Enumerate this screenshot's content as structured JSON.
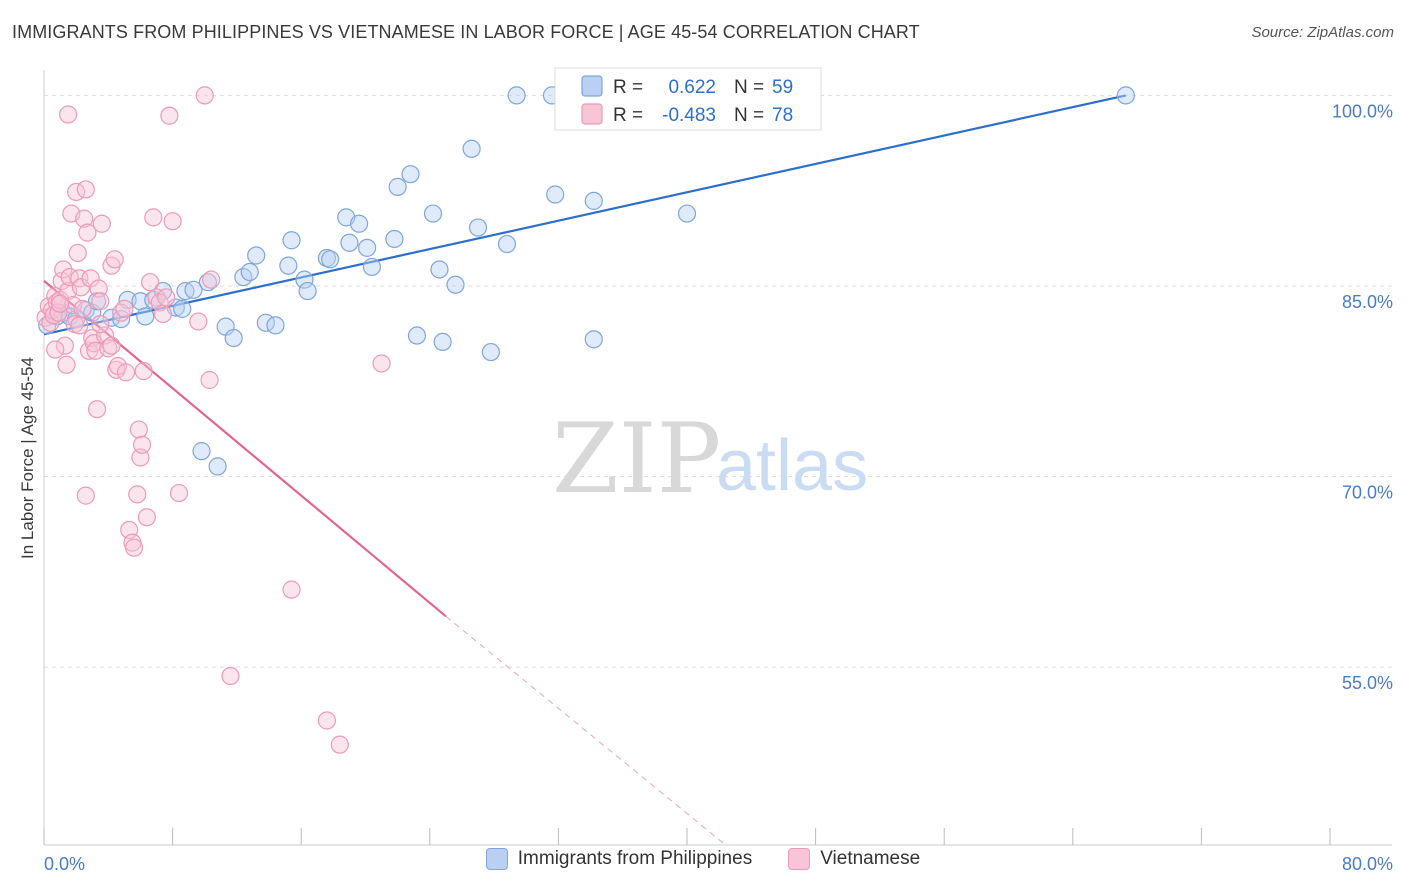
{
  "title": "IMMIGRANTS FROM PHILIPPINES VS VIETNAMESE IN LABOR FORCE | AGE 45-54 CORRELATION CHART",
  "source": "Source: ZipAtlas.com",
  "watermark": {
    "zip": "ZIP",
    "atlas": "atlas"
  },
  "colors": {
    "blue_stroke": "#7ea6dc",
    "blue_fill": "#b9d0f3",
    "blue_line": "#2c6fcd",
    "pink_stroke": "#ec9ab5",
    "pink_fill": "#f7c5d6",
    "pink_line": "#e0668f",
    "axis_label": "#4a7cc6",
    "grid": "#dddddd"
  },
  "chart_data": {
    "type": "scatter",
    "ylabel": "In Labor Force | Age 45-54",
    "x_tick_labels": [
      "0.0%",
      "80.0%"
    ],
    "y_tick_labels": [
      "100.0%",
      "85.0%",
      "70.0%",
      "55.0%"
    ],
    "y_ticks": [
      100,
      85,
      70,
      55
    ],
    "xlim": [
      0,
      80
    ],
    "ylim": [
      41,
      102
    ],
    "legend": {
      "rows": [
        {
          "r_label": "R =",
          "r_value": "0.622",
          "n_label": "N =",
          "n_value": "59"
        },
        {
          "r_label": "R =",
          "r_value": "-0.483",
          "n_label": "N =",
          "n_value": "78"
        }
      ]
    },
    "series": [
      {
        "name": "Immigrants from Philippines",
        "color": "blue",
        "R": 0.622,
        "N": 59,
        "trend": {
          "x0": 0,
          "y0": 81.2,
          "x1": 67.3,
          "y1": 100.0
        },
        "points": [
          [
            0.2,
            81.9
          ],
          [
            0.8,
            82.6
          ],
          [
            1.2,
            82.9
          ],
          [
            1.6,
            82.6
          ],
          [
            2.0,
            82.4
          ],
          [
            2.6,
            83.1
          ],
          [
            3.0,
            82.9
          ],
          [
            3.3,
            83.8
          ],
          [
            4.2,
            82.5
          ],
          [
            4.8,
            82.4
          ],
          [
            5.2,
            83.9
          ],
          [
            6.0,
            83.8
          ],
          [
            6.3,
            82.6
          ],
          [
            6.8,
            83.9
          ],
          [
            7.4,
            84.6
          ],
          [
            8.2,
            83.3
          ],
          [
            8.6,
            83.2
          ],
          [
            8.8,
            84.6
          ],
          [
            9.3,
            84.7
          ],
          [
            10.2,
            85.3
          ],
          [
            11.3,
            81.8
          ],
          [
            11.8,
            80.9
          ],
          [
            12.4,
            85.7
          ],
          [
            12.8,
            86.1
          ],
          [
            13.2,
            87.4
          ],
          [
            13.8,
            82.1
          ],
          [
            14.4,
            81.9
          ],
          [
            15.2,
            86.6
          ],
          [
            15.4,
            88.6
          ],
          [
            16.2,
            85.5
          ],
          [
            16.4,
            84.6
          ],
          [
            17.6,
            87.2
          ],
          [
            17.8,
            87.1
          ],
          [
            18.8,
            90.4
          ],
          [
            19.0,
            88.4
          ],
          [
            19.6,
            89.9
          ],
          [
            20.1,
            88.0
          ],
          [
            20.4,
            86.5
          ],
          [
            21.8,
            88.7
          ],
          [
            22.0,
            92.8
          ],
          [
            22.8,
            93.8
          ],
          [
            23.2,
            81.1
          ],
          [
            24.2,
            90.7
          ],
          [
            24.6,
            86.3
          ],
          [
            24.8,
            80.6
          ],
          [
            25.6,
            85.1
          ],
          [
            26.6,
            95.8
          ],
          [
            27.0,
            89.6
          ],
          [
            27.8,
            79.8
          ],
          [
            28.8,
            88.3
          ],
          [
            29.4,
            100.0
          ],
          [
            31.6,
            100.0
          ],
          [
            31.8,
            92.2
          ],
          [
            34.2,
            91.7
          ],
          [
            34.2,
            80.8
          ],
          [
            40.0,
            90.7
          ],
          [
            67.3,
            100.0
          ],
          [
            9.8,
            72.0
          ],
          [
            10.8,
            70.8
          ]
        ]
      },
      {
        "name": "Vietnamese",
        "color": "pink",
        "R": -0.483,
        "N": 78,
        "trend": {
          "x0": 0,
          "y0": 85.4,
          "x1": 25.0,
          "y1": 59.0
        },
        "trend_extension": {
          "x0": 25.0,
          "y0": 59.0,
          "x1": 42.4,
          "y1": 41.0
        },
        "points": [
          [
            0.1,
            82.5
          ],
          [
            0.3,
            83.4
          ],
          [
            0.4,
            82.1
          ],
          [
            0.5,
            83.1
          ],
          [
            0.6,
            82.7
          ],
          [
            0.7,
            84.2
          ],
          [
            0.8,
            83.7
          ],
          [
            0.9,
            82.9
          ],
          [
            1.0,
            83.9
          ],
          [
            1.1,
            85.4
          ],
          [
            1.2,
            86.3
          ],
          [
            1.3,
            80.3
          ],
          [
            1.4,
            78.8
          ],
          [
            1.5,
            84.6
          ],
          [
            1.6,
            85.7
          ],
          [
            1.7,
            90.7
          ],
          [
            1.8,
            83.5
          ],
          [
            1.9,
            82.0
          ],
          [
            2.0,
            92.4
          ],
          [
            2.1,
            87.6
          ],
          [
            2.2,
            85.6
          ],
          [
            2.3,
            84.9
          ],
          [
            2.4,
            83.2
          ],
          [
            2.5,
            90.3
          ],
          [
            2.6,
            92.6
          ],
          [
            2.7,
            89.2
          ],
          [
            2.8,
            79.9
          ],
          [
            2.9,
            85.6
          ],
          [
            3.0,
            80.9
          ],
          [
            3.1,
            80.5
          ],
          [
            3.2,
            79.9
          ],
          [
            3.3,
            75.3
          ],
          [
            3.4,
            84.8
          ],
          [
            3.5,
            83.8
          ],
          [
            3.6,
            89.9
          ],
          [
            3.8,
            81.1
          ],
          [
            4.0,
            80.1
          ],
          [
            4.2,
            86.6
          ],
          [
            4.4,
            87.1
          ],
          [
            4.5,
            78.4
          ],
          [
            4.6,
            78.7
          ],
          [
            4.8,
            82.9
          ],
          [
            5.0,
            83.2
          ],
          [
            5.1,
            78.2
          ],
          [
            5.3,
            65.8
          ],
          [
            5.5,
            64.8
          ],
          [
            5.6,
            64.4
          ],
          [
            5.8,
            68.6
          ],
          [
            5.9,
            73.7
          ],
          [
            6.0,
            71.5
          ],
          [
            6.1,
            72.5
          ],
          [
            6.2,
            78.3
          ],
          [
            6.4,
            66.8
          ],
          [
            6.6,
            85.3
          ],
          [
            6.8,
            90.4
          ],
          [
            7.0,
            84.1
          ],
          [
            7.2,
            83.7
          ],
          [
            7.4,
            82.8
          ],
          [
            7.6,
            84.1
          ],
          [
            8.0,
            90.1
          ],
          [
            8.4,
            68.7
          ],
          [
            9.6,
            82.2
          ],
          [
            10.0,
            100.0
          ],
          [
            10.3,
            77.6
          ],
          [
            11.6,
            54.3
          ],
          [
            7.8,
            98.4
          ],
          [
            1.5,
            98.5
          ],
          [
            2.6,
            68.5
          ],
          [
            10.4,
            85.5
          ],
          [
            15.4,
            61.1
          ],
          [
            17.6,
            50.8
          ],
          [
            18.4,
            48.9
          ],
          [
            21.0,
            78.9
          ],
          [
            3.5,
            82.0
          ],
          [
            4.2,
            80.3
          ],
          [
            2.2,
            81.9
          ],
          [
            1.0,
            83.6
          ],
          [
            0.7,
            80.0
          ]
        ]
      }
    ]
  }
}
